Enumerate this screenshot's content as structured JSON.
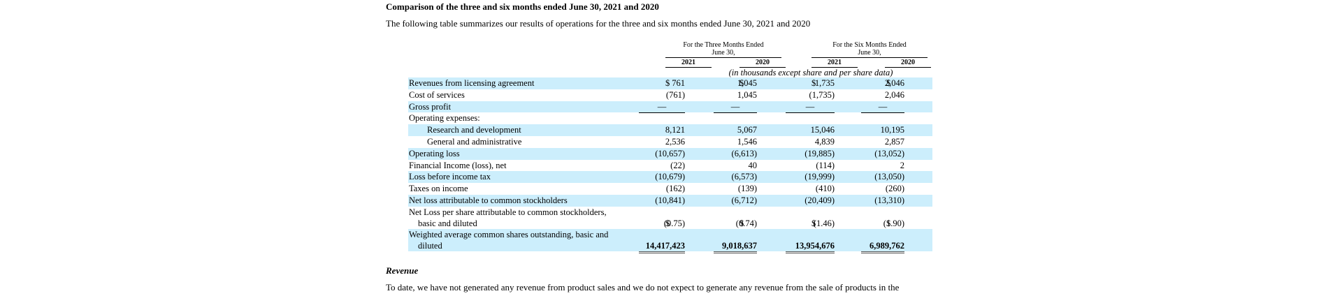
{
  "heading": "Comparison of the three and six months ended June 30, 2021 and 2020",
  "intro": "The following table summarizes our results of operations for the three and six months ended June 30, 2021 and 2020",
  "groups": {
    "three_months": {
      "line1": "For the Three Months Ended",
      "line2": "June 30,"
    },
    "six_months": {
      "line1": "For the Six Months Ended",
      "line2": "June 30,"
    }
  },
  "years": [
    "2021",
    "2020",
    "2021",
    "2020"
  ],
  "units_note": "(in thousands except share and per share data)",
  "rows": [
    {
      "label": "Revenues from licensing agreement",
      "values": [
        "761",
        "1,045",
        "1,735",
        "2,046"
      ],
      "currency": "$"
    },
    {
      "label": "Cost of services",
      "values": [
        "(761)",
        "1,045",
        "(1,735)",
        "2,046"
      ]
    },
    {
      "label": "Gross profit",
      "values": [
        "—",
        "—",
        "—",
        "—"
      ]
    },
    {
      "label": "Operating expenses:",
      "values": [
        "",
        "",
        "",
        ""
      ]
    },
    {
      "label": "Research and development",
      "values": [
        "8,121",
        "5,067",
        "15,046",
        "10,195"
      ]
    },
    {
      "label": "General and administrative",
      "values": [
        "2,536",
        "1,546",
        "4,839",
        "2,857"
      ]
    },
    {
      "label": "Operating loss",
      "values": [
        "(10,657)",
        "(6,613)",
        "(19,885)",
        "(13,052)"
      ]
    },
    {
      "label": "Financial Income (loss), net",
      "values": [
        "(22)",
        "40",
        "(114)",
        "2"
      ]
    },
    {
      "label": "Loss before income tax",
      "values": [
        "(10,679)",
        "(6,573)",
        "(19,999)",
        "(13,050)"
      ]
    },
    {
      "label": "Taxes on income",
      "values": [
        "(162)",
        "(139)",
        "(410)",
        "(260)"
      ]
    },
    {
      "label": "Net loss attributable to common stockholders",
      "values": [
        "(10,841)",
        "(6,712)",
        "(20,409)",
        "(13,310)"
      ]
    },
    {
      "label_line1": "Net Loss per share attributable to common stockholders,",
      "label_line2": "basic and diluted",
      "values": [
        "(0.75)",
        "(0.74)",
        "(1.46)",
        "(1.90)"
      ],
      "currency": "$"
    },
    {
      "label_line1": "Weighted average common shares outstanding, basic and",
      "label_line2": "diluted",
      "values": [
        "14,417,423",
        "9,018,637",
        "13,954,676",
        "6,989,762"
      ]
    }
  ],
  "subheading": "Revenue",
  "paragraph": "To date, we have not generated any revenue from product sales and we do not expect to generate any revenue from the sale of products in the"
}
